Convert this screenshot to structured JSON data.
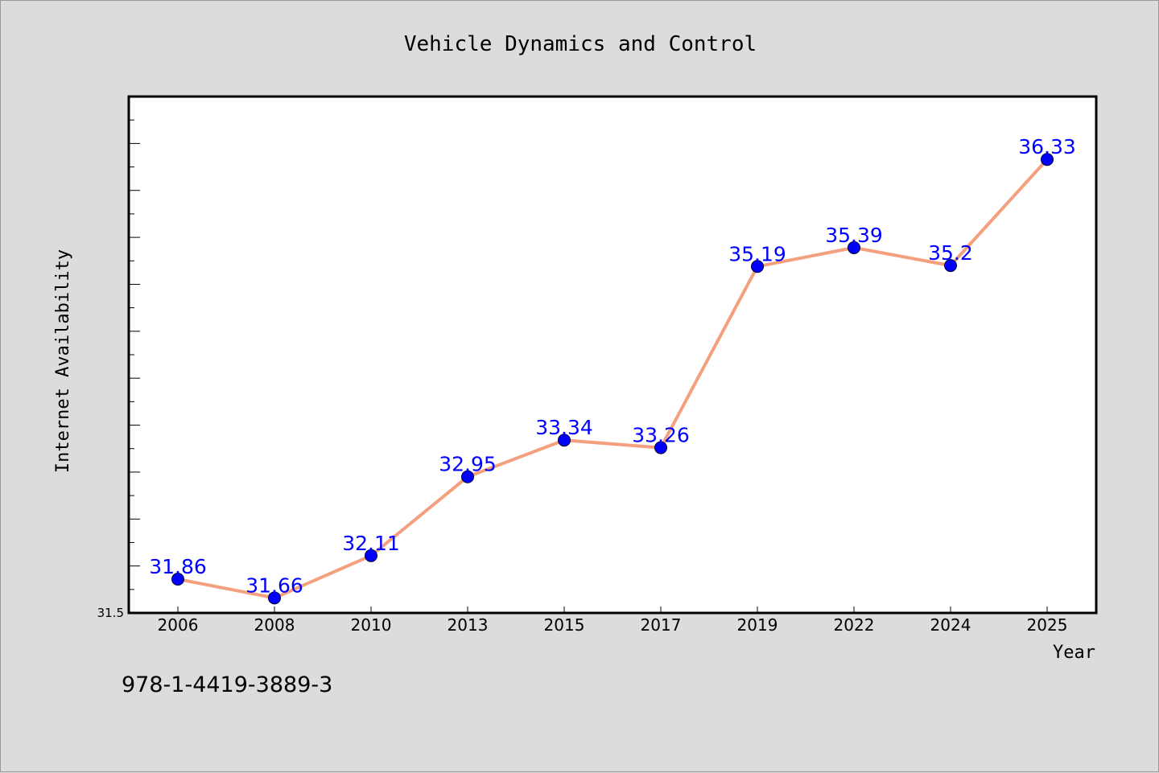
{
  "chart_data": {
    "type": "line",
    "title": "Vehicle Dynamics and Control",
    "xlabel": "Year",
    "ylabel": "Internet Availability",
    "categories": [
      "2006",
      "2008",
      "2010",
      "2013",
      "2015",
      "2017",
      "2019",
      "2022",
      "2024",
      "2025"
    ],
    "series": [
      {
        "values": [
          31.86,
          31.66,
          32.11,
          32.95,
          33.34,
          33.26,
          35.19,
          35.39,
          35.2,
          36.33
        ],
        "labels": [
          "31.86",
          "31.66",
          "32.11",
          "32.95",
          "33.34",
          "33.26",
          "35.19",
          "35.39",
          "35.2",
          "36.33"
        ]
      }
    ],
    "ylim": [
      31.5,
      37.0
    ],
    "ytick_labels": [
      "31.5"
    ],
    "grid": false,
    "colors": {
      "line": "#f4a07e",
      "marker": "#0000ff",
      "label": "#0000ff",
      "plot_bg": "#ffffff",
      "frame_bg": "#dcdcdc"
    }
  },
  "footer": {
    "isbn": "978-1-4419-3889-3"
  }
}
